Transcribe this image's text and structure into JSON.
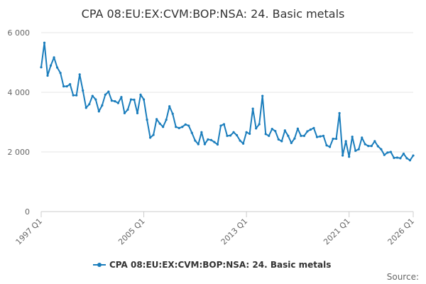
{
  "chart_data": {
    "type": "line",
    "title": "CPA 08:EU:EX:CVM:BOP:NSA: 24. Basic metals",
    "xlabel": "",
    "ylabel": "",
    "x_range": [
      "1997 Q1",
      "2026 Q1"
    ],
    "xticks": [
      "1997 Q1",
      "2005 Q1",
      "2013 Q1",
      "2021 Q1",
      "2026 Q1"
    ],
    "ylim": [
      0,
      6000
    ],
    "yticks": [
      0,
      2000,
      4000,
      6000
    ],
    "ytick_labels": [
      "0",
      "2 000",
      "4 000",
      "6 000"
    ],
    "grid": "horizontal",
    "legend_position": "bottom",
    "series": [
      {
        "name": "CPA 08:EU:EX:CVM:BOP:NSA: 24. Basic metals",
        "color": "#1a7dbc",
        "values": [
          4840,
          5660,
          4560,
          4900,
          5170,
          4830,
          4650,
          4200,
          4200,
          4270,
          3900,
          3900,
          4600,
          4060,
          3480,
          3600,
          3880,
          3760,
          3360,
          3560,
          3920,
          4020,
          3720,
          3700,
          3640,
          3840,
          3300,
          3420,
          3760,
          3750,
          3300,
          3920,
          3760,
          3080,
          2480,
          2570,
          3100,
          2950,
          2840,
          3080,
          3530,
          3280,
          2840,
          2800,
          2840,
          2920,
          2880,
          2640,
          2380,
          2260,
          2660,
          2260,
          2420,
          2400,
          2330,
          2250,
          2880,
          2930,
          2540,
          2550,
          2660,
          2560,
          2380,
          2280,
          2660,
          2610,
          3450,
          2790,
          2930,
          3880,
          2600,
          2540,
          2770,
          2700,
          2420,
          2360,
          2720,
          2540,
          2300,
          2450,
          2780,
          2540,
          2540,
          2690,
          2750,
          2800,
          2500,
          2520,
          2540,
          2220,
          2170,
          2440,
          2440,
          3300,
          1880,
          2360,
          1840,
          2510,
          2040,
          2090,
          2480,
          2260,
          2200,
          2200,
          2360,
          2190,
          2090,
          1900,
          1980,
          2000,
          1800,
          1810,
          1790,
          1940,
          1790,
          1720,
          1880
        ]
      }
    ]
  },
  "source_label": "Source:"
}
